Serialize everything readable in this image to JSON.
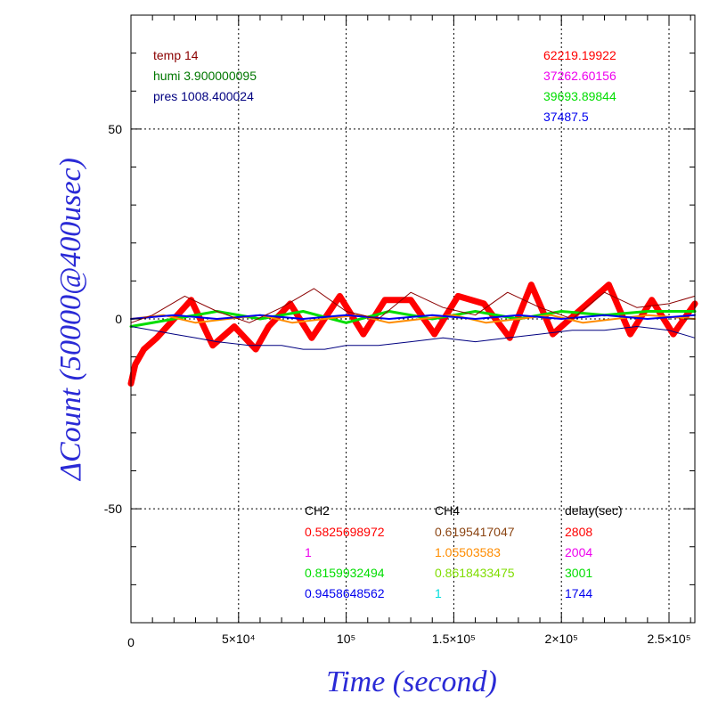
{
  "chart_data": {
    "type": "line",
    "xlabel": "Time (second)",
    "ylabel": "ΔCount (50000@400usec)",
    "xlim": [
      0,
      262000
    ],
    "ylim": [
      -80,
      80
    ],
    "grid": true,
    "x_ticks": [
      {
        "value": 0,
        "label": "0"
      },
      {
        "value": 50000,
        "label": "5×10⁴"
      },
      {
        "value": 100000,
        "label": "10⁵"
      },
      {
        "value": 150000,
        "label": "1.5×10⁵"
      },
      {
        "value": 200000,
        "label": "2×10⁵"
      },
      {
        "value": 250000,
        "label": "2.5×10⁵"
      }
    ],
    "y_ticks": [
      {
        "value": 50,
        "label": "50"
      },
      {
        "value": 0,
        "label": "0"
      },
      {
        "value": -50,
        "label": "-50"
      }
    ],
    "env_labels": [
      {
        "text": "temp 14",
        "color": "#8b0000"
      },
      {
        "text": "humi 3.900000095",
        "color": "#007700"
      },
      {
        "text": "pres 1008.400024",
        "color": "#000080"
      }
    ],
    "baseline_values": [
      {
        "text": "62219.19922",
        "color": "#ff0000"
      },
      {
        "text": "37262.60156",
        "color": "#ee00ee"
      },
      {
        "text": "39693.89844",
        "color": "#00dd00"
      },
      {
        "text": "37487.5",
        "color": "#0000ee"
      }
    ],
    "table_headers": [
      {
        "text": "CH2",
        "color": "#000000"
      },
      {
        "text": "CH4",
        "color": "#000000"
      },
      {
        "text": "delay(sec)",
        "color": "#000000"
      }
    ],
    "table_rows": [
      [
        {
          "text": "0.5825698972",
          "color": "#ff0000"
        },
        {
          "text": "0.6195417047",
          "color": "#8b4513"
        },
        {
          "text": "2808",
          "color": "#ff0000"
        }
      ],
      [
        {
          "text": "1",
          "color": "#ee00ee"
        },
        {
          "text": "1.05503583",
          "color": "#ff8c00"
        },
        {
          "text": "2004",
          "color": "#ee00ee"
        }
      ],
      [
        {
          "text": "0.8159932494",
          "color": "#00dd00"
        },
        {
          "text": "0.8618433475",
          "color": "#7fdd00"
        },
        {
          "text": "3001",
          "color": "#00dd00"
        }
      ],
      [
        {
          "text": "0.9458648562",
          "color": "#0000ee"
        },
        {
          "text": "1",
          "color": "#00dddd"
        },
        {
          "text": "1744",
          "color": "#0000ee"
        }
      ]
    ],
    "series": [
      {
        "color": "#ff0000",
        "width": 7,
        "x": [
          0,
          2000,
          6000,
          12000,
          20000,
          28000,
          38000,
          48000,
          58000,
          64000,
          74000,
          84000,
          97000,
          108000,
          118000,
          130000,
          141000,
          152000,
          164000,
          176000,
          186000,
          196000,
          210000,
          222000,
          232000,
          242000,
          252000,
          262000
        ],
        "y": [
          -17,
          -12,
          -8,
          -5,
          0,
          5,
          -7,
          -2,
          -8,
          -2,
          4,
          -5,
          6,
          -4,
          5,
          5,
          -4,
          6,
          4,
          -5,
          9,
          -4,
          3,
          9,
          -4,
          5,
          -4,
          4
        ]
      },
      {
        "color": "#00dd00",
        "width": 3,
        "x": [
          0,
          20000,
          40000,
          60000,
          80000,
          100000,
          120000,
          140000,
          160000,
          180000,
          200000,
          220000,
          240000,
          262000
        ],
        "y": [
          -2,
          0,
          2,
          0,
          2,
          -1,
          2,
          0,
          2,
          0,
          2,
          1,
          2,
          2
        ]
      },
      {
        "color": "#ff8c00",
        "width": 2,
        "x": [
          0,
          15000,
          30000,
          45000,
          60000,
          75000,
          90000,
          105000,
          120000,
          135000,
          150000,
          165000,
          180000,
          195000,
          210000,
          225000,
          240000,
          262000
        ],
        "y": [
          0,
          1,
          -1,
          0,
          1,
          -1,
          0,
          1,
          -1,
          0,
          1,
          -1,
          0,
          1,
          -1,
          0,
          1,
          0
        ]
      },
      {
        "color": "#0000ee",
        "width": 2,
        "x": [
          0,
          20000,
          40000,
          60000,
          80000,
          100000,
          120000,
          140000,
          160000,
          180000,
          200000,
          220000,
          240000,
          262000
        ],
        "y": [
          0,
          1,
          0,
          1,
          0,
          1,
          0,
          1,
          0,
          1,
          0,
          1,
          0,
          1
        ]
      },
      {
        "color": "#000080",
        "width": 1,
        "x": [
          0,
          10000,
          20000,
          30000,
          40000,
          55000,
          70000,
          80000,
          90000,
          100000,
          115000,
          130000,
          145000,
          160000,
          175000,
          190000,
          205000,
          220000,
          235000,
          250000,
          262000
        ],
        "y": [
          -2,
          -3,
          -4,
          -5,
          -6,
          -7,
          -7,
          -8,
          -8,
          -7,
          -7,
          -6,
          -5,
          -6,
          -5,
          -4,
          -3,
          -3,
          -2,
          -3,
          -5
        ]
      },
      {
        "color": "#8b0000",
        "width": 1,
        "x": [
          0,
          10000,
          25000,
          40000,
          55000,
          70000,
          85000,
          100000,
          115000,
          130000,
          145000,
          160000,
          175000,
          190000,
          205000,
          220000,
          235000,
          250000,
          262000
        ],
        "y": [
          -1,
          1,
          6,
          2,
          -1,
          3,
          8,
          2,
          0,
          7,
          3,
          1,
          7,
          3,
          0,
          7,
          3,
          4,
          6
        ]
      }
    ]
  }
}
